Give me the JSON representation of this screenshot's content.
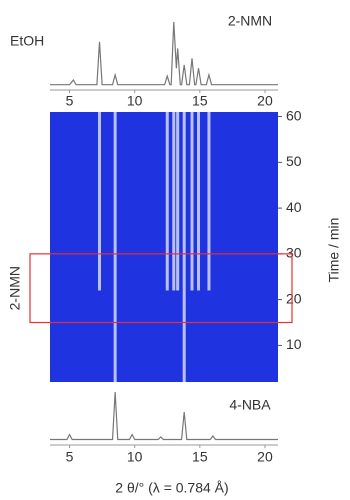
{
  "chart_data": [
    {
      "type": "line",
      "title": "2-NMN",
      "annotation": "EtOH",
      "color": "#777777",
      "x": [
        3.5,
        5,
        5.3,
        5.5,
        7.1,
        7.3,
        7.5,
        8.3,
        8.5,
        8.7,
        10.2,
        12.3,
        12.5,
        12.7,
        12.8,
        13.0,
        13.2,
        13.3,
        13.5,
        13.6,
        13.8,
        14.0,
        14.2,
        14.4,
        14.6,
        14.7,
        14.9,
        15.1,
        15.5,
        15.7,
        15.9,
        18,
        21
      ],
      "values": [
        5,
        5,
        12,
        5,
        5,
        70,
        5,
        5,
        20,
        5,
        5,
        5,
        18,
        5,
        5,
        100,
        30,
        60,
        5,
        5,
        35,
        5,
        5,
        45,
        5,
        5,
        30,
        5,
        5,
        20,
        5,
        5,
        5
      ],
      "xlim": [
        3.5,
        21
      ],
      "xticks": [
        5,
        10,
        15,
        20
      ],
      "ylim": [
        0,
        100
      ]
    },
    {
      "type": "streaks",
      "y_label": "Time / min",
      "background": "#1f33e0",
      "color": "#d4dbff",
      "x": [
        7.3,
        8.5,
        12.5,
        13.0,
        13.3,
        13.8,
        14.4,
        14.9,
        15.7
      ],
      "start": [
        22,
        2,
        22,
        22,
        22,
        2,
        22,
        22,
        22
      ],
      "end": [
        61,
        61,
        61,
        61,
        61,
        61,
        61,
        61,
        61
      ],
      "xlim": [
        3.5,
        21
      ],
      "ylim": [
        2,
        61
      ],
      "yticks": [
        10,
        20,
        30,
        40,
        50,
        60
      ],
      "highlight": {
        "label": "2-NMN",
        "range": [
          15,
          30
        ],
        "color": "#e83030"
      }
    },
    {
      "type": "line",
      "title": "4-NBA",
      "x_label": "2 θ/° (λ = 0.784 Å)",
      "color": "#777777",
      "x": [
        3.5,
        4.8,
        5,
        5.2,
        8.3,
        8.5,
        8.7,
        9.6,
        9.8,
        10,
        11.8,
        12,
        12.2,
        13.6,
        13.8,
        14,
        15.8,
        16,
        16.2,
        21
      ],
      "values": [
        5,
        5,
        15,
        5,
        5,
        100,
        5,
        5,
        15,
        5,
        5,
        10,
        5,
        5,
        60,
        5,
        5,
        12,
        5,
        5
      ],
      "xlim": [
        3.5,
        21
      ],
      "xticks": [
        5,
        10,
        15,
        20
      ],
      "ylim": [
        0,
        100
      ]
    }
  ]
}
